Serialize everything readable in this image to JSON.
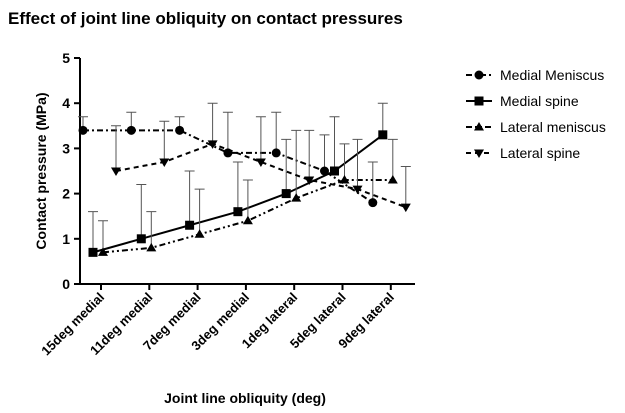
{
  "chart_data": {
    "type": "line",
    "title": "Effect of joint line obliquity on contact pressures",
    "x_label": "Joint line obliquity (deg)",
    "y_label": "Contact pressure (MPa)",
    "categories": [
      "15deg medial",
      "11deg medial",
      "7deg medial",
      "3deg medial",
      "1deg lateral",
      "5deg lateral",
      "9deg lateral"
    ],
    "ylim": [
      0,
      5
    ],
    "yticks": [
      0,
      1,
      2,
      3,
      4,
      5
    ],
    "legend": "right",
    "series": [
      {
        "name": "Medial Meniscus",
        "color": "#000000",
        "marker": "circle",
        "dash": "6,3,2,3",
        "values": [
          3.4,
          3.4,
          3.4,
          2.9,
          2.9,
          2.5,
          1.8
        ],
        "errors": [
          0.3,
          0.4,
          0.3,
          0.9,
          0.9,
          0.8,
          0.9
        ]
      },
      {
        "name": "Medial spine",
        "color": "#000000",
        "marker": "square",
        "dash": "none",
        "values": [
          0.7,
          1.0,
          1.3,
          1.6,
          2.0,
          2.5,
          3.3
        ],
        "errors": [
          0.9,
          1.2,
          1.2,
          1.1,
          1.2,
          1.2,
          0.7
        ]
      },
      {
        "name": "Lateral meniscus",
        "color": "#000000",
        "marker": "triangle-up",
        "dash": "6,3,2,3,2,3",
        "values": [
          0.7,
          0.8,
          1.1,
          1.4,
          1.9,
          2.3,
          2.3
        ],
        "errors": [
          0.7,
          0.8,
          1.0,
          0.9,
          1.5,
          0.8,
          0.9
        ]
      },
      {
        "name": "Lateral spine",
        "color": "#000000",
        "marker": "triangle-down",
        "dash": "5,4",
        "values": [
          2.5,
          2.7,
          3.1,
          2.7,
          2.3,
          2.1,
          1.7
        ],
        "errors": [
          1.0,
          0.9,
          0.9,
          1.0,
          1.1,
          1.1,
          0.9
        ]
      }
    ]
  }
}
